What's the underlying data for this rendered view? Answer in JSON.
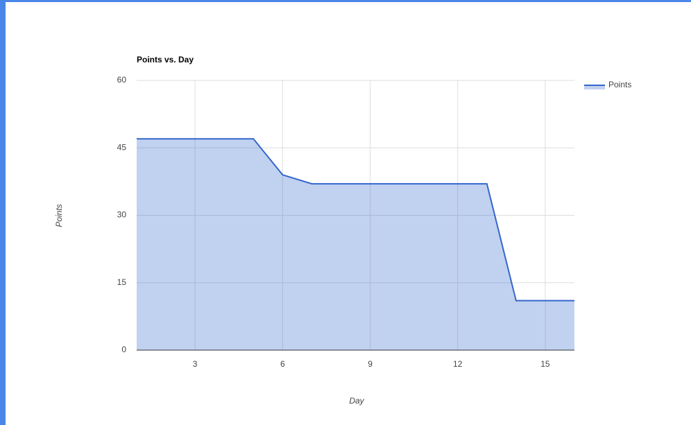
{
  "chart_data": {
    "type": "area",
    "title": "Points vs. Day",
    "x_label": "Day",
    "y_label": "Points",
    "x": [
      1,
      2,
      3,
      4,
      5,
      6,
      7,
      8,
      9,
      10,
      11,
      12,
      13,
      14,
      15,
      16
    ],
    "series": [
      {
        "name": "Points",
        "color": "#3366cc",
        "values": [
          47,
          47,
          47,
          47,
          47,
          39,
          37,
          37,
          37,
          37,
          37,
          37,
          37,
          11,
          11,
          11
        ]
      }
    ],
    "xlim": [
      1,
      16
    ],
    "xticks": [
      3,
      6,
      9,
      12,
      15
    ],
    "ylim": [
      0,
      60
    ],
    "yticks": [
      0,
      15,
      30,
      45,
      60
    ],
    "grid": true,
    "legend": "right"
  }
}
